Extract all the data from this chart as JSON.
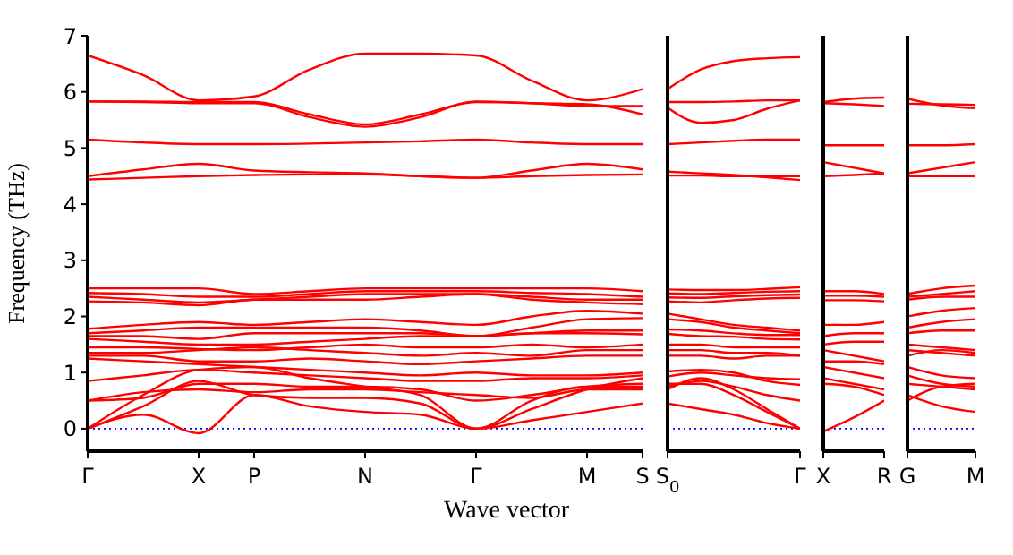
{
  "chart_data": [
    {
      "type": "line",
      "ylabel": "Frequency (THz)",
      "xlabel": "Wave vector",
      "ylim": [
        -0.4,
        7
      ],
      "yticks": [
        0,
        1,
        2,
        3,
        4,
        5,
        6,
        7
      ],
      "line_style": "solid",
      "ref_lines": [
        {
          "axis": "y",
          "value": 0,
          "color": "#0000ff",
          "line_style": "dotted"
        }
      ],
      "categories": [
        "Γ",
        null,
        "X",
        "P",
        null,
        "N",
        null,
        "Γ",
        null,
        "M",
        "S"
      ],
      "series": [
        {
          "color": "#ff0000",
          "values": [
            6.65,
            6.3,
            5.85,
            5.92,
            6.4,
            6.68,
            6.68,
            6.65,
            6.2,
            5.85,
            6.05
          ]
        },
        {
          "color": "#ff0000",
          "values": [
            5.83,
            5.83,
            5.82,
            5.82,
            5.6,
            5.42,
            5.6,
            5.82,
            5.8,
            5.75,
            5.75
          ]
        },
        {
          "color": "#ff0000",
          "values": [
            5.83,
            5.82,
            5.8,
            5.8,
            5.55,
            5.38,
            5.55,
            5.83,
            5.8,
            5.78,
            5.6
          ]
        },
        {
          "color": "#ff0000",
          "values": [
            5.15,
            5.1,
            5.07,
            5.07,
            5.08,
            5.1,
            5.12,
            5.15,
            5.1,
            5.07,
            5.07
          ]
        },
        {
          "color": "#ff0000",
          "values": [
            4.5,
            4.62,
            4.72,
            4.6,
            4.57,
            4.55,
            4.5,
            4.47,
            4.6,
            4.72,
            4.62
          ]
        },
        {
          "color": "#ff0000",
          "values": [
            4.44,
            4.47,
            4.5,
            4.52,
            4.53,
            4.53,
            4.5,
            4.47,
            4.5,
            4.52,
            4.53
          ]
        },
        {
          "color": "#ff0000",
          "values": [
            2.5,
            2.5,
            2.5,
            2.4,
            2.45,
            2.5,
            2.5,
            2.5,
            2.5,
            2.5,
            2.45
          ]
        },
        {
          "color": "#ff0000",
          "values": [
            2.42,
            2.4,
            2.35,
            2.35,
            2.4,
            2.45,
            2.45,
            2.45,
            2.42,
            2.4,
            2.35
          ]
        },
        {
          "color": "#ff0000",
          "values": [
            2.35,
            2.3,
            2.25,
            2.3,
            2.35,
            2.4,
            2.4,
            2.4,
            2.35,
            2.3,
            2.3
          ]
        },
        {
          "color": "#ff0000",
          "values": [
            2.27,
            2.25,
            2.2,
            2.3,
            2.3,
            2.3,
            2.35,
            2.4,
            2.3,
            2.25,
            2.22
          ]
        },
        {
          "color": "#ff0000",
          "values": [
            1.78,
            1.85,
            1.9,
            1.85,
            1.9,
            1.95,
            1.9,
            1.85,
            2.0,
            2.1,
            2.05
          ]
        },
        {
          "color": "#ff0000",
          "values": [
            1.7,
            1.75,
            1.8,
            1.8,
            1.8,
            1.8,
            1.75,
            1.65,
            1.8,
            1.95,
            1.97
          ]
        },
        {
          "color": "#ff0000",
          "values": [
            1.65,
            1.65,
            1.6,
            1.7,
            1.7,
            1.7,
            1.7,
            1.65,
            1.7,
            1.75,
            1.75
          ]
        },
        {
          "color": "#ff0000",
          "values": [
            1.6,
            1.55,
            1.5,
            1.5,
            1.55,
            1.6,
            1.65,
            1.65,
            1.7,
            1.7,
            1.68
          ]
        },
        {
          "color": "#ff0000",
          "values": [
            1.45,
            1.45,
            1.42,
            1.4,
            1.45,
            1.5,
            1.45,
            1.45,
            1.5,
            1.45,
            1.5
          ]
        },
        {
          "color": "#ff0000",
          "values": [
            1.35,
            1.35,
            1.4,
            1.45,
            1.4,
            1.35,
            1.3,
            1.35,
            1.3,
            1.4,
            1.4
          ]
        },
        {
          "color": "#ff0000",
          "values": [
            1.3,
            1.3,
            1.2,
            1.2,
            1.25,
            1.2,
            1.15,
            1.2,
            1.25,
            1.3,
            1.3
          ]
        },
        {
          "color": "#ff0000",
          "values": [
            1.25,
            1.2,
            1.15,
            1.1,
            1.05,
            1.0,
            0.95,
            1.0,
            0.95,
            0.95,
            1.0
          ]
        },
        {
          "color": "#ff0000",
          "values": [
            0.85,
            0.95,
            1.05,
            1.0,
            0.95,
            0.9,
            0.85,
            0.85,
            0.9,
            0.9,
            0.95
          ]
        },
        {
          "color": "#ff0000",
          "values": [
            0.5,
            0.55,
            0.8,
            0.8,
            0.75,
            0.75,
            0.7,
            0.5,
            0.6,
            0.75,
            0.8
          ]
        },
        {
          "color": "#ff0000",
          "values": [
            0.5,
            0.65,
            0.7,
            0.65,
            0.7,
            0.7,
            0.65,
            0.6,
            0.55,
            0.7,
            0.7
          ]
        },
        {
          "color": "#ff0000",
          "values": [
            0,
            0.6,
            1.05,
            1.1,
            0.9,
            0.75,
            0.6,
            0,
            0.5,
            0.75,
            0.75
          ]
        },
        {
          "color": "#ff0000",
          "values": [
            0,
            0.4,
            0.85,
            0.6,
            0.55,
            0.55,
            0.45,
            0,
            0.35,
            0.7,
            0.9
          ]
        },
        {
          "color": "#ff0000",
          "values": [
            0,
            0.25,
            -0.08,
            0.6,
            0.4,
            0.3,
            0.25,
            0,
            0.15,
            0.3,
            0.45
          ]
        }
      ]
    },
    {
      "type": "line",
      "ylim": [
        -0.4,
        7
      ],
      "tick_labels": "x",
      "line_style": "solid",
      "ref_lines": [
        {
          "axis": "y",
          "value": 0,
          "color": "#0000ff",
          "line_style": "dotted"
        }
      ],
      "categories": [
        "S$_{0}$",
        null,
        null,
        null,
        "Γ"
      ],
      "series": [
        {
          "color": "#ff0000",
          "values": [
            6.05,
            6.4,
            6.55,
            6.6,
            6.62
          ]
        },
        {
          "color": "#ff0000",
          "values": [
            5.82,
            5.82,
            5.83,
            5.85,
            5.85
          ]
        },
        {
          "color": "#ff0000",
          "values": [
            5.72,
            5.45,
            5.5,
            5.7,
            5.85
          ]
        },
        {
          "color": "#ff0000",
          "values": [
            5.07,
            5.1,
            5.13,
            5.15,
            5.15
          ]
        },
        {
          "color": "#ff0000",
          "values": [
            4.58,
            4.55,
            4.52,
            4.48,
            4.43
          ]
        },
        {
          "color": "#ff0000",
          "values": [
            4.51,
            4.51,
            4.5,
            4.5,
            4.5
          ]
        },
        {
          "color": "#ff0000",
          "values": [
            2.48,
            2.47,
            2.47,
            2.49,
            2.52
          ]
        },
        {
          "color": "#ff0000",
          "values": [
            2.41,
            2.4,
            2.42,
            2.44,
            2.45
          ]
        },
        {
          "color": "#ff0000",
          "values": [
            2.34,
            2.33,
            2.36,
            2.38,
            2.39
          ]
        },
        {
          "color": "#ff0000",
          "values": [
            2.27,
            2.25,
            2.29,
            2.32,
            2.33
          ]
        },
        {
          "color": "#ff0000",
          "values": [
            2.05,
            1.95,
            1.85,
            1.8,
            1.75
          ]
        },
        {
          "color": "#ff0000",
          "values": [
            1.95,
            1.9,
            1.8,
            1.75,
            1.7
          ]
        },
        {
          "color": "#ff0000",
          "values": [
            1.77,
            1.75,
            1.7,
            1.67,
            1.67
          ]
        },
        {
          "color": "#ff0000",
          "values": [
            1.69,
            1.65,
            1.64,
            1.6,
            1.59
          ]
        },
        {
          "color": "#ff0000",
          "values": [
            1.5,
            1.5,
            1.45,
            1.45,
            1.45
          ]
        },
        {
          "color": "#ff0000",
          "values": [
            1.4,
            1.4,
            1.35,
            1.35,
            1.3
          ]
        },
        {
          "color": "#ff0000",
          "values": [
            1.3,
            1.3,
            1.25,
            1.3,
            1.3
          ]
        },
        {
          "color": "#ff0000",
          "values": [
            1.02,
            1.05,
            1.0,
            0.85,
            0.78
          ]
        },
        {
          "color": "#ff0000",
          "values": [
            0.93,
            1.0,
            0.95,
            0.9,
            0.88
          ]
        },
        {
          "color": "#ff0000",
          "values": [
            0.75,
            0.85,
            0.75,
            0.6,
            0.5
          ]
        },
        {
          "color": "#ff0000",
          "values": [
            0.7,
            0.9,
            0.7,
            0.35,
            0
          ]
        },
        {
          "color": "#ff0000",
          "values": [
            0.8,
            0.8,
            0.6,
            0.3,
            0
          ]
        },
        {
          "color": "#ff0000",
          "values": [
            0.45,
            0.35,
            0.25,
            0.1,
            0
          ]
        }
      ]
    },
    {
      "type": "line",
      "ylim": [
        -0.4,
        7
      ],
      "tick_labels": "x",
      "line_style": "solid",
      "ref_lines": [
        {
          "axis": "y",
          "value": 0,
          "color": "#0000ff",
          "line_style": "dotted"
        }
      ],
      "categories": [
        "X",
        null,
        "R"
      ],
      "series": [
        {
          "color": "#ff0000",
          "values": [
            5.82,
            5.88,
            5.9
          ]
        },
        {
          "color": "#ff0000",
          "values": [
            5.8,
            5.78,
            5.75
          ]
        },
        {
          "color": "#ff0000",
          "values": [
            5.05,
            5.05,
            5.05
          ]
        },
        {
          "color": "#ff0000",
          "values": [
            4.75,
            4.65,
            4.55
          ]
        },
        {
          "color": "#ff0000",
          "values": [
            4.5,
            4.52,
            4.55
          ]
        },
        {
          "color": "#ff0000",
          "values": [
            2.45,
            2.45,
            2.4
          ]
        },
        {
          "color": "#ff0000",
          "values": [
            2.37,
            2.37,
            2.35
          ]
        },
        {
          "color": "#ff0000",
          "values": [
            2.29,
            2.29,
            2.27
          ]
        },
        {
          "color": "#ff0000",
          "values": [
            1.85,
            1.85,
            1.9
          ]
        },
        {
          "color": "#ff0000",
          "values": [
            1.65,
            1.7,
            1.7
          ]
        },
        {
          "color": "#ff0000",
          "values": [
            1.5,
            1.55,
            1.55
          ]
        },
        {
          "color": "#ff0000",
          "values": [
            1.4,
            1.3,
            1.2
          ]
        },
        {
          "color": "#ff0000",
          "values": [
            1.2,
            1.2,
            1.15
          ]
        },
        {
          "color": "#ff0000",
          "values": [
            1.1,
            1.0,
            0.9
          ]
        },
        {
          "color": "#ff0000",
          "values": [
            0.9,
            0.8,
            0.7
          ]
        },
        {
          "color": "#ff0000",
          "values": [
            0.8,
            0.75,
            0.6
          ]
        },
        {
          "color": "#ff0000",
          "values": [
            -0.05,
            0.2,
            0.5
          ]
        }
      ]
    },
    {
      "type": "line",
      "ylim": [
        -0.4,
        7
      ],
      "tick_labels": "x",
      "line_style": "solid",
      "ref_lines": [
        {
          "axis": "y",
          "value": 0,
          "color": "#0000ff",
          "line_style": "dotted"
        }
      ],
      "categories": [
        "G",
        null,
        "M"
      ],
      "series": [
        {
          "color": "#ff0000",
          "values": [
            5.88,
            5.76,
            5.71
          ]
        },
        {
          "color": "#ff0000",
          "values": [
            5.79,
            5.78,
            5.77
          ]
        },
        {
          "color": "#ff0000",
          "values": [
            5.05,
            5.05,
            5.07
          ]
        },
        {
          "color": "#ff0000",
          "values": [
            4.55,
            4.65,
            4.75
          ]
        },
        {
          "color": "#ff0000",
          "values": [
            4.5,
            4.5,
            4.5
          ]
        },
        {
          "color": "#ff0000",
          "values": [
            2.4,
            2.5,
            2.55
          ]
        },
        {
          "color": "#ff0000",
          "values": [
            2.35,
            2.4,
            2.45
          ]
        },
        {
          "color": "#ff0000",
          "values": [
            2.3,
            2.35,
            2.35
          ]
        },
        {
          "color": "#ff0000",
          "values": [
            2.0,
            2.1,
            2.15
          ]
        },
        {
          "color": "#ff0000",
          "values": [
            1.8,
            1.9,
            1.95
          ]
        },
        {
          "color": "#ff0000",
          "values": [
            1.7,
            1.75,
            1.75
          ]
        },
        {
          "color": "#ff0000",
          "values": [
            1.5,
            1.45,
            1.4
          ]
        },
        {
          "color": "#ff0000",
          "values": [
            1.4,
            1.35,
            1.3
          ]
        },
        {
          "color": "#ff0000",
          "values": [
            1.3,
            1.4,
            1.35
          ]
        },
        {
          "color": "#ff0000",
          "values": [
            1.1,
            0.95,
            0.9
          ]
        },
        {
          "color": "#ff0000",
          "values": [
            0.95,
            0.8,
            0.75
          ]
        },
        {
          "color": "#ff0000",
          "values": [
            0.8,
            0.75,
            0.7
          ]
        },
        {
          "color": "#ff0000",
          "values": [
            0.5,
            0.75,
            0.8
          ]
        },
        {
          "color": "#ff0000",
          "values": [
            0.6,
            0.4,
            0.3
          ]
        }
      ]
    }
  ]
}
